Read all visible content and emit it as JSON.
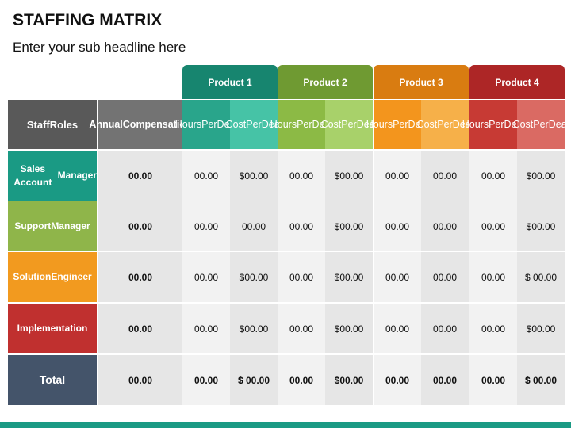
{
  "title": "STAFFING MATRIX",
  "subtitle": "Enter your sub headline here",
  "products": [
    {
      "name": "Product 1",
      "color": "#17856f",
      "sub1": "#29a58b",
      "sub2": "#46c3a6"
    },
    {
      "name": "Product 2",
      "color": "#6f9a32",
      "sub1": "#8cba45",
      "sub2": "#a8d16a"
    },
    {
      "name": "Product 3",
      "color": "#d97c11",
      "sub1": "#f3951d",
      "sub2": "#f6b049"
    },
    {
      "name": "Product 4",
      "color": "#ad2626",
      "sub1": "#c73a34",
      "sub2": "#da6a63"
    }
  ],
  "headers": {
    "staff_roles": [
      "Staff",
      "Roles"
    ],
    "annual_comp": [
      "Annual",
      "Compensation"
    ],
    "hours": [
      "Hours",
      "Per",
      "Deal"
    ],
    "cost": [
      "Cost",
      "Per",
      "Deal"
    ]
  },
  "rows": [
    {
      "role": [
        "Sales Account",
        "Manager"
      ],
      "color": "#1a9a84",
      "annual": "00.00",
      "cells": [
        "00.00",
        "$00.00",
        "00.00",
        "$00.00",
        "00.00",
        "00.00",
        "00.00",
        "$00.00"
      ]
    },
    {
      "role": [
        "Support",
        "Manager"
      ],
      "color": "#8fb54a",
      "annual": "00.00",
      "cells": [
        "00.00",
        "00.00",
        "00.00",
        "$00.00",
        "00.00",
        "00.00",
        "00.00",
        "$00.00"
      ]
    },
    {
      "role": [
        "Solution",
        "Engineer"
      ],
      "color": "#f29a1f",
      "annual": "00.00",
      "cells": [
        "00.00",
        "$00.00",
        "00.00",
        "$00.00",
        "00.00",
        "00.00",
        "00.00",
        "$ 00.00"
      ]
    },
    {
      "role": [
        "Implementation"
      ],
      "color": "#c0302f",
      "annual": "00.00",
      "cells": [
        "00.00",
        "$00.00",
        "00.00",
        "$00.00",
        "00.00",
        "00.00",
        "00.00",
        "$00.00"
      ]
    },
    {
      "role": [
        "Total"
      ],
      "color": "#44546a",
      "annual": "00.00",
      "total": true,
      "cells": [
        "00.00",
        "$ 00.00",
        "00.00",
        "$00.00",
        "00.00",
        "00.00",
        "00.00",
        "$ 00.00"
      ]
    }
  ]
}
